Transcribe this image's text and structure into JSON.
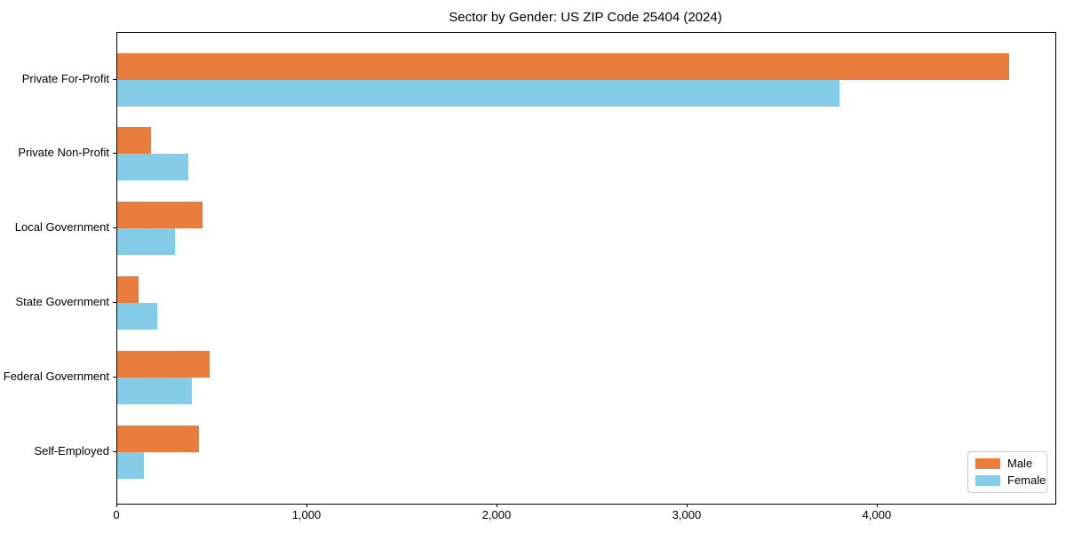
{
  "chart_data": {
    "type": "bar",
    "orientation": "horizontal",
    "title": "Sector by Gender: US ZIP Code 25404 (2024)",
    "categories": [
      "Private For-Profit",
      "Private Non-Profit",
      "Local Government",
      "State Government",
      "Federal Government",
      "Self-Employed"
    ],
    "series": [
      {
        "name": "Male",
        "color": "#e87d3e",
        "values": [
          4694,
          178,
          447,
          111,
          486,
          429
        ]
      },
      {
        "name": "Female",
        "color": "#85cce8",
        "values": [
          3801,
          373,
          304,
          210,
          393,
          139
        ]
      }
    ],
    "xlabel": "",
    "ylabel": "",
    "xlim": [
      0,
      4935
    ],
    "xticks": [
      {
        "value": 0,
        "label": "0"
      },
      {
        "value": 1000,
        "label": "1,000"
      },
      {
        "value": 2000,
        "label": "2,000"
      },
      {
        "value": 3000,
        "label": "3,000"
      },
      {
        "value": 4000,
        "label": "4,000"
      }
    ],
    "grid": false,
    "legend": {
      "position": "lower right",
      "labels": [
        "Male",
        "Female"
      ]
    }
  }
}
